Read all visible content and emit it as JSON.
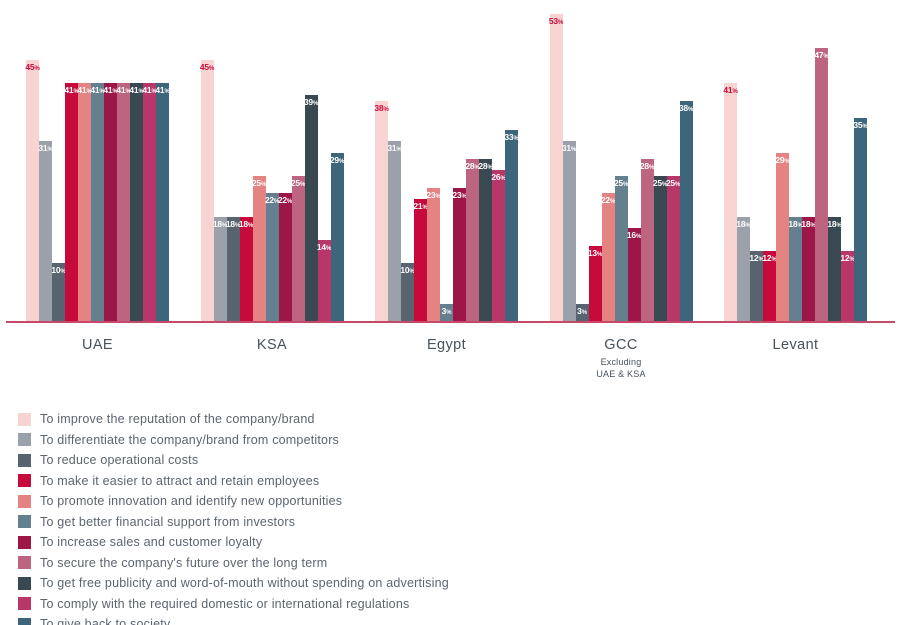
{
  "chart_data": {
    "type": "bar",
    "title": "",
    "unit": "%",
    "ylim": [
      0,
      53
    ],
    "grid": false,
    "legend_position": "bottom-left",
    "axis_line_color": "#c6496a",
    "value_labels": "inside-top",
    "categories": [
      "UAE",
      "KSA",
      "Egypt",
      "GCC",
      "Levant"
    ],
    "category_sublabels": [
      "",
      "",
      "",
      "Excluding\nUAE & KSA",
      ""
    ],
    "series": [
      {
        "name": "To improve the reputation of the company/brand",
        "color": "#f7d4d2",
        "label_color": "#c60b3c",
        "values": [
          45,
          45,
          38,
          53,
          41
        ]
      },
      {
        "name": "To differentiate the company/brand from competitors",
        "color": "#9ba1ab",
        "values": [
          31,
          18,
          31,
          31,
          18
        ]
      },
      {
        "name": "To reduce operational costs",
        "color": "#57646f",
        "values": [
          10,
          18,
          10,
          3,
          12
        ]
      },
      {
        "name": "To make it easier to attract and retain employees",
        "color": "#c60b3c",
        "values": [
          41,
          18,
          21,
          13,
          12
        ]
      },
      {
        "name": "To promote innovation and identify new opportunities",
        "color": "#e58282",
        "values": [
          41,
          25,
          23,
          22,
          29
        ]
      },
      {
        "name": "To get better financial support from investors",
        "color": "#647f8d",
        "values": [
          41,
          22,
          3,
          25,
          18
        ]
      },
      {
        "name": "To increase sales and customer loyalty",
        "color": "#9c1748",
        "values": [
          41,
          22,
          23,
          16,
          18
        ]
      },
      {
        "name": "To secure the company's future over the long term",
        "color": "#bc6480",
        "values": [
          41,
          25,
          28,
          28,
          47
        ]
      },
      {
        "name": "To get free publicity and word-of-mouth without spending on advertising",
        "color": "#394951",
        "values": [
          41,
          39,
          28,
          25,
          18
        ]
      },
      {
        "name": "To comply with the required domestic or international regulations",
        "color": "#b93768",
        "values": [
          41,
          14,
          26,
          25,
          12
        ]
      },
      {
        "name": "To give back to society",
        "color": "#3d657c",
        "values": [
          41,
          29,
          33,
          38,
          35
        ]
      }
    ]
  }
}
